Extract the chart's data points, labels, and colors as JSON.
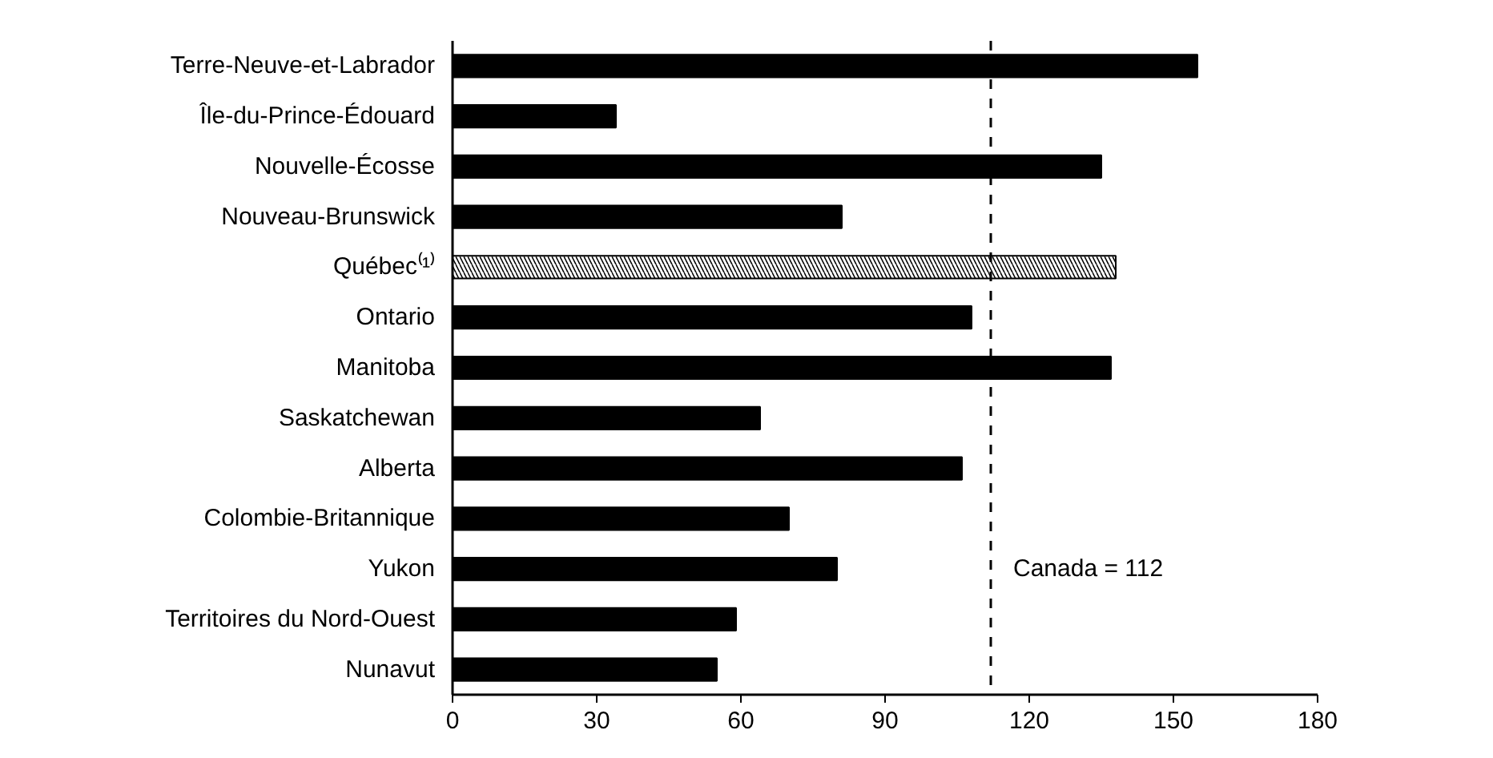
{
  "chart_data": {
    "type": "bar",
    "orientation": "horizontal",
    "categories": [
      "Terre-Neuve-et-Labrador",
      "Île-du-Prince-Édouard",
      "Nouvelle-Écosse",
      "Nouveau-Brunswick",
      "Québec⁽¹⁾",
      "Ontario",
      "Manitoba",
      "Saskatchewan",
      "Alberta",
      "Colombie-Britannique",
      "Yukon",
      "Territoires du Nord-Ouest",
      "Nunavut"
    ],
    "values": [
      155,
      34,
      135,
      81,
      138,
      108,
      137,
      64,
      106,
      70,
      80,
      59,
      55
    ],
    "colors": [
      "#000000",
      "#000000",
      "#000000",
      "#000000",
      "#ffffff",
      "#000000",
      "#000000",
      "#000000",
      "#000000",
      "#000000",
      "#000000",
      "#000000",
      "#000000"
    ],
    "xlim": [
      0,
      180
    ],
    "xticks": [
      0,
      30,
      60,
      90,
      120,
      150,
      180
    ],
    "ref_lines": [
      {
        "axis": "x",
        "value": 112,
        "label": "Canada = 112",
        "color": "#000000",
        "line_style": "dashed"
      }
    ],
    "grid": false
  }
}
